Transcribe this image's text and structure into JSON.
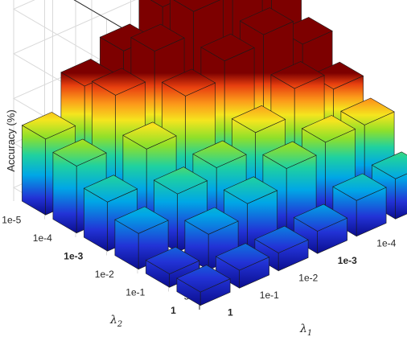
{
  "chart_data": {
    "type": "bar3d",
    "zlabel": "Accuracy (%)",
    "xlabel_symbol": "λ",
    "xlabel_sub": "1",
    "ylabel_symbol": "λ",
    "ylabel_sub": "2",
    "x_categories": [
      "1",
      "1e-1",
      "1e-2",
      "1e-3",
      "1e-4",
      "1e-5"
    ],
    "y_categories": [
      "1",
      "1e-1",
      "1e-2",
      "1e-3",
      "1e-4",
      "1e-5"
    ],
    "bold_categories": [
      "1e-3",
      "1"
    ],
    "zlim": [
      47,
      100
    ],
    "zticks": [
      50,
      60,
      70,
      80,
      90,
      100
    ],
    "grid": true,
    "colormap": "jet",
    "values": [
      [
        50,
        51,
        51,
        52,
        55,
        56
      ],
      [
        50,
        55,
        58,
        62,
        64,
        64
      ],
      [
        55,
        60,
        62,
        66,
        72,
        68
      ],
      [
        58,
        66,
        74,
        78,
        80,
        74
      ],
      [
        62,
        74,
        80,
        85,
        86,
        80
      ],
      [
        64,
        72,
        76,
        82,
        86,
        86
      ]
    ]
  }
}
